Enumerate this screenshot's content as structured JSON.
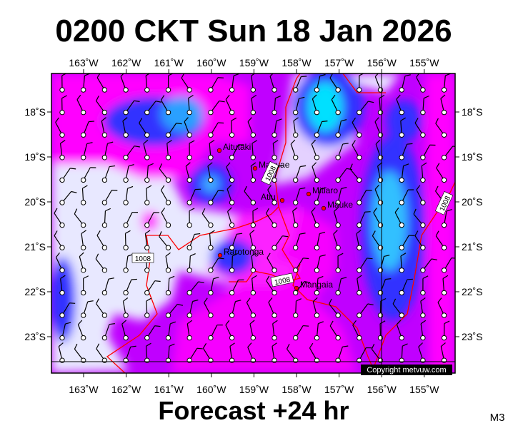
{
  "header": {
    "title": "0200 CKT Sun 18 Jan 2026"
  },
  "lon_labels": [
    "163˚W",
    "162˚W",
    "161˚W",
    "160˚W",
    "159˚W",
    "158˚W",
    "157˚W",
    "156˚W",
    "155˚W"
  ],
  "lat_labels": [
    "18˚S",
    "19˚S",
    "20˚S",
    "21˚S",
    "22˚S",
    "23˚S"
  ],
  "places": [
    "Aitutaki",
    "Manuae",
    "Atiu",
    "Mitiaro",
    "Mauke",
    "Rarotonga",
    "Mangaia"
  ],
  "isobar_labels": [
    "1008",
    "1008",
    "1008",
    "1008"
  ],
  "copyright": "Copyright metvuw.com",
  "footer": "Forecast +24 hr",
  "model": "M3"
}
